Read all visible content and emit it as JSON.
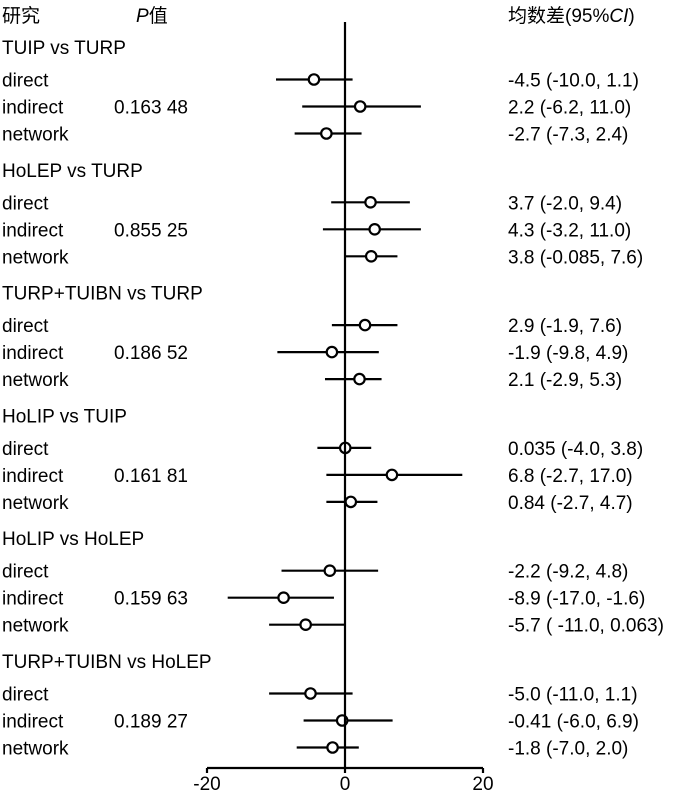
{
  "chart_data": {
    "type": "forest",
    "header": {
      "study": "研究",
      "p_letter": "P",
      "p_suffix": "值",
      "md_prefix": "均数差(95%",
      "md_ci": "CI",
      "md_suffix": ")"
    },
    "x_axis": {
      "min": -20,
      "max": 20,
      "ticks": [
        -20,
        0,
        20
      ],
      "tick_labels": [
        "-20",
        "0",
        "20"
      ]
    },
    "groups": [
      {
        "title": "TUIP vs TURP",
        "p_value": "0.163 48",
        "rows": [
          {
            "label": "direct",
            "est": -4.5,
            "lo": -10.0,
            "hi": 1.1,
            "text": "-4.5 (-10.0, 1.1)"
          },
          {
            "label": "indirect",
            "est": 2.2,
            "lo": -6.2,
            "hi": 11.0,
            "text": "2.2 (-6.2, 11.0)"
          },
          {
            "label": "network",
            "est": -2.7,
            "lo": -7.3,
            "hi": 2.4,
            "text": "-2.7 (-7.3, 2.4)"
          }
        ]
      },
      {
        "title": "HoLEP vs TURP",
        "p_value": "0.855 25",
        "rows": [
          {
            "label": "direct",
            "est": 3.7,
            "lo": -2.0,
            "hi": 9.4,
            "text": "3.7 (-2.0, 9.4)"
          },
          {
            "label": "indirect",
            "est": 4.3,
            "lo": -3.2,
            "hi": 11.0,
            "text": "4.3 (-3.2, 11.0)"
          },
          {
            "label": "network",
            "est": 3.8,
            "lo": -0.085,
            "hi": 7.6,
            "text": "3.8 (-0.085, 7.6)"
          }
        ]
      },
      {
        "title": "TURP+TUIBN vs TURP",
        "p_value": "0.186 52",
        "rows": [
          {
            "label": "direct",
            "est": 2.9,
            "lo": -1.9,
            "hi": 7.6,
            "text": "2.9 (-1.9, 7.6)"
          },
          {
            "label": "indirect",
            "est": -1.9,
            "lo": -9.8,
            "hi": 4.9,
            "text": "-1.9 (-9.8, 4.9)"
          },
          {
            "label": "network",
            "est": 2.1,
            "lo": -2.9,
            "hi": 5.3,
            "text": "2.1 (-2.9, 5.3)"
          }
        ]
      },
      {
        "title": "HoLIP vs TUIP",
        "p_value": "0.161 81",
        "rows": [
          {
            "label": "direct",
            "est": 0.035,
            "lo": -4.0,
            "hi": 3.8,
            "text": "0.035 (-4.0, 3.8)"
          },
          {
            "label": "indirect",
            "est": 6.8,
            "lo": -2.7,
            "hi": 17.0,
            "text": "6.8 (-2.7, 17.0)"
          },
          {
            "label": "network",
            "est": 0.84,
            "lo": -2.7,
            "hi": 4.7,
            "text": "0.84 (-2.7, 4.7)"
          }
        ]
      },
      {
        "title": "HoLIP vs HoLEP",
        "p_value": "0.159 63",
        "rows": [
          {
            "label": "direct",
            "est": -2.2,
            "lo": -9.2,
            "hi": 4.8,
            "text": "-2.2 (-9.2, 4.8)"
          },
          {
            "label": "indirect",
            "est": -8.9,
            "lo": -17.0,
            "hi": -1.6,
            "text": "-8.9 (-17.0, -1.6)"
          },
          {
            "label": "network",
            "est": -5.7,
            "lo": -11.0,
            "hi": 0.063,
            "text": "-5.7 ( -11.0, 0.063)"
          }
        ]
      },
      {
        "title": "TURP+TUIBN vs HoLEP",
        "p_value": "0.189 27",
        "rows": [
          {
            "label": "direct",
            "est": -5.0,
            "lo": -11.0,
            "hi": 1.1,
            "text": "-5.0 (-11.0, 1.1)"
          },
          {
            "label": "indirect",
            "est": -0.41,
            "lo": -6.0,
            "hi": 6.9,
            "text": "-0.41 (-6.0, 6.9)"
          },
          {
            "label": "network",
            "est": -1.8,
            "lo": -7.0,
            "hi": 2.0,
            "text": "-1.8 (-7.0,  2.0)"
          }
        ]
      }
    ]
  }
}
